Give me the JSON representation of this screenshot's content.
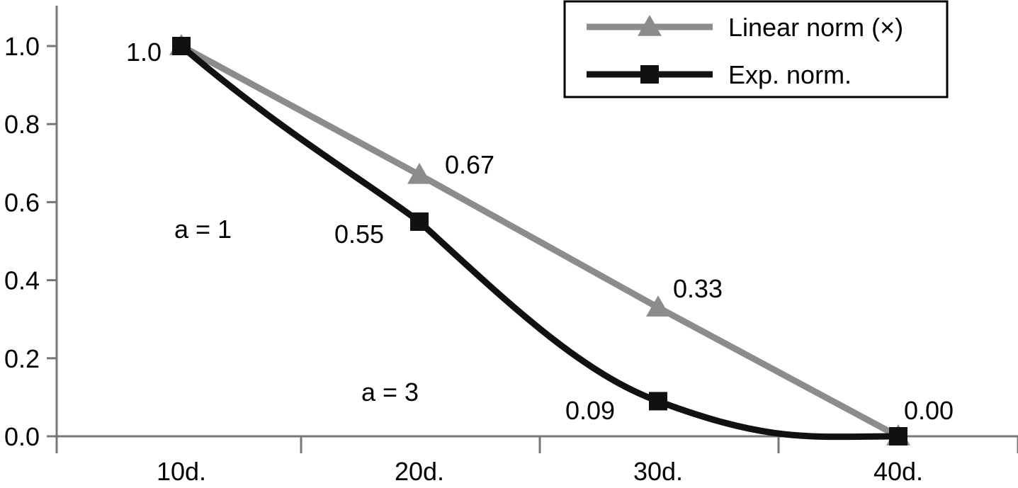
{
  "chart_data": {
    "type": "line",
    "categories": [
      "10d.",
      "20d.",
      "30d.",
      "40d."
    ],
    "yticks": [
      "0.0",
      "0.2",
      "0.4",
      "0.6",
      "0.8",
      "1.0"
    ],
    "ylim": [
      0,
      1.0
    ],
    "grid": false,
    "legend_position": "top-right",
    "series": [
      {
        "name": "Linear norm (×)",
        "values": [
          1.0,
          0.67,
          0.33,
          0.0
        ],
        "labels": [
          "",
          "0.67",
          "0.33",
          ""
        ],
        "color": "#8c8c8c",
        "marker": "triangle"
      },
      {
        "name": "Exp. norm.",
        "values": [
          1.0,
          0.55,
          0.09,
          0.0
        ],
        "labels": [
          "1.0",
          "0.55",
          "0.09",
          "0.00"
        ],
        "color": "#111111",
        "marker": "square"
      }
    ],
    "annotations": [
      {
        "text": "a = 1",
        "x": "10d.",
        "y": 0.58
      },
      {
        "text": "a = 3",
        "x": "20d.",
        "y": 0.16
      }
    ]
  }
}
